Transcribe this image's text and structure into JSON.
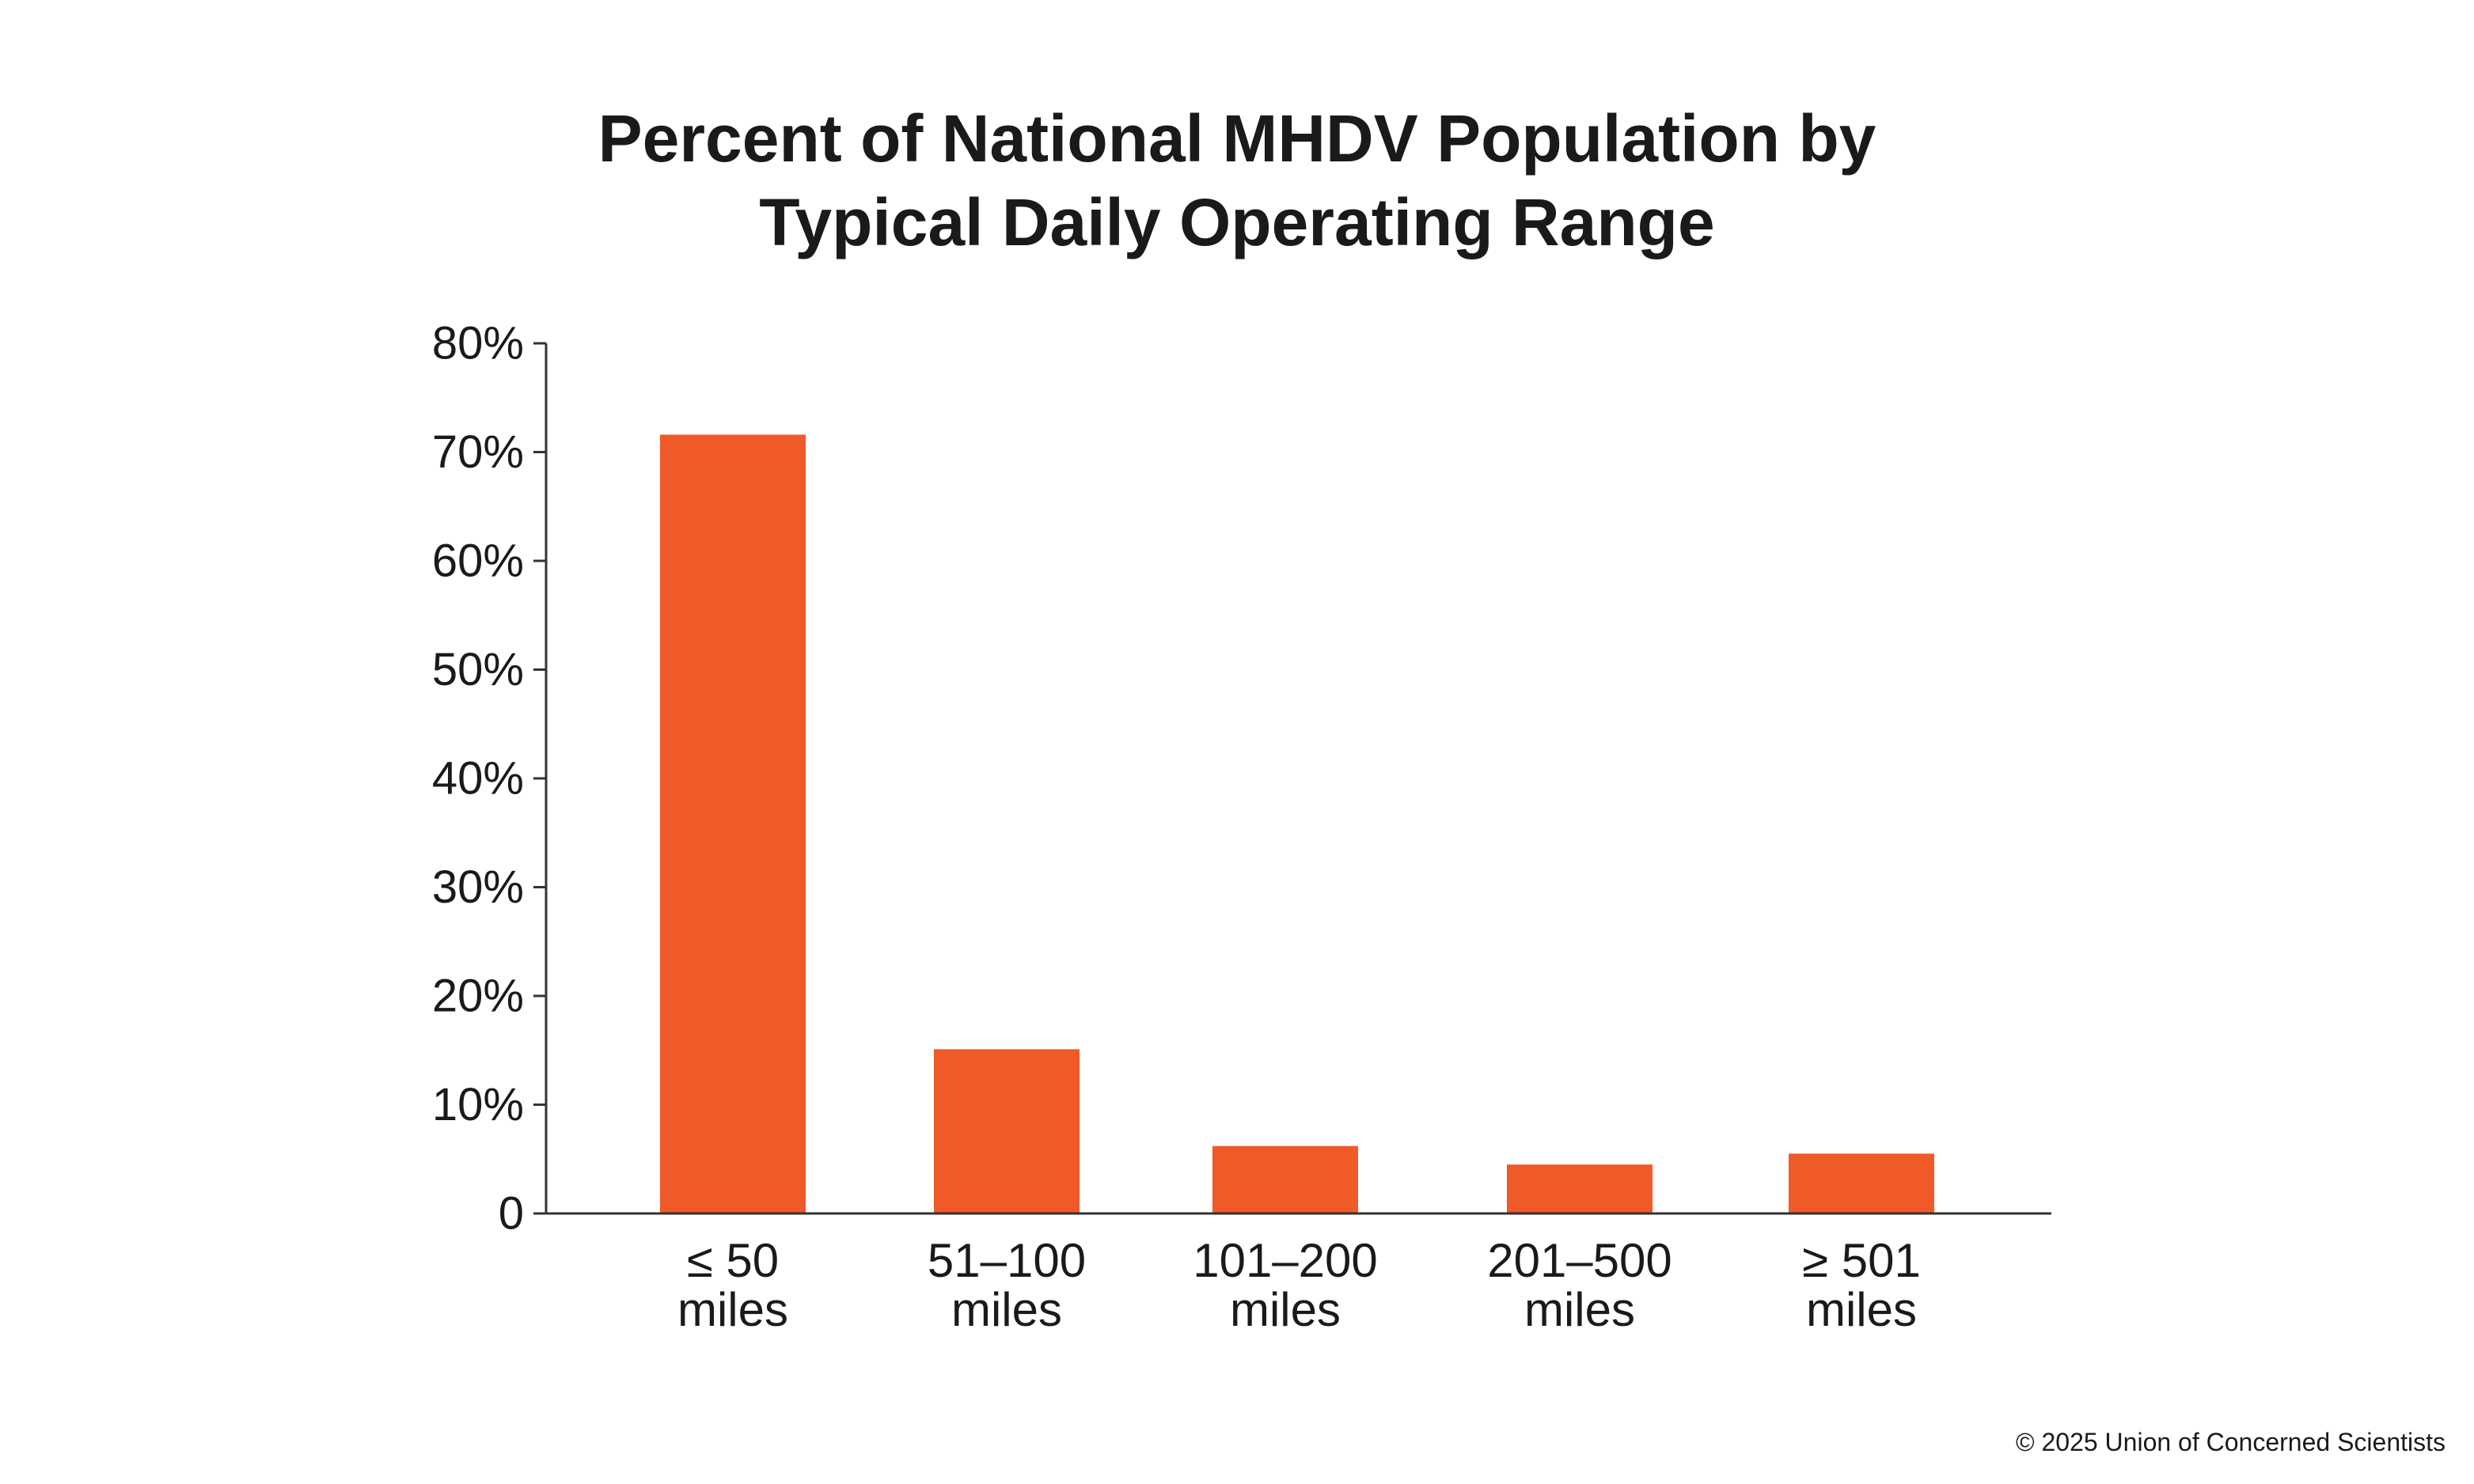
{
  "chart_data": {
    "type": "bar",
    "title": [
      "Percent of National MHDV Population by",
      "Typical Daily Operating Range"
    ],
    "xlabel": "",
    "ylabel": "",
    "categories": [
      [
        "≤ 50",
        "miles"
      ],
      [
        "51–100",
        "miles"
      ],
      [
        "101–200",
        "miles"
      ],
      [
        "201–500",
        "miles"
      ],
      [
        "≥ 501",
        "miles"
      ]
    ],
    "values": [
      71.6,
      15.1,
      6.2,
      4.5,
      5.5
    ],
    "value_unit": "percent",
    "ylim": [
      0,
      80
    ],
    "yticks": [
      0,
      10,
      20,
      30,
      40,
      50,
      60,
      70,
      80
    ],
    "ytick_labels": [
      "0",
      "10%",
      "20%",
      "30%",
      "40%",
      "50%",
      "60%",
      "70%",
      "80%"
    ],
    "grid": false,
    "legend": "none",
    "bar_color": "#f05a28",
    "axis_color": "#333333"
  },
  "footer": {
    "copyright": "© 2025 Union of Concerned Scientists"
  }
}
